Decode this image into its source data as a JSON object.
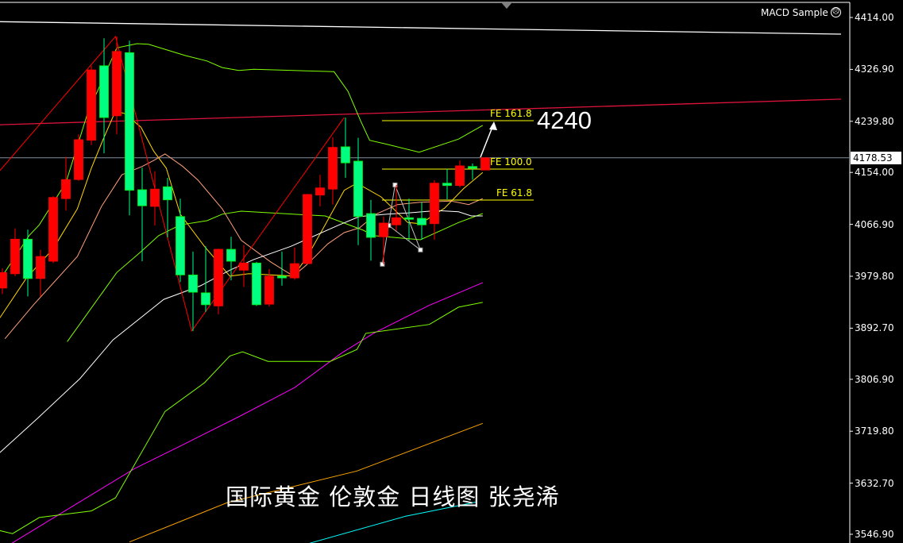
{
  "indicator_label": "MACD Sample",
  "indicator_icon": "sad-face-icon",
  "caption": "国际黄金 伦敦金 日线图 张尧浠",
  "target_annotation": "4240",
  "current_price": "4178.53",
  "colors": {
    "background": "#000000",
    "bull": "#ff0000",
    "bear": "#00ff80",
    "fibo": "#ffff00",
    "grid_price_line": "#7f8fa0"
  },
  "chart_data": {
    "type": "candlestick",
    "title": "",
    "xlabel": "",
    "ylabel": "",
    "ylim": [
      3546.9,
      4414.0
    ],
    "grid": false,
    "price_ticks": [
      "4414.00",
      "4326.90",
      "4239.80",
      "4154.00",
      "4066.90",
      "3979.80",
      "3892.70",
      "3806.90",
      "3719.80",
      "3632.70",
      "3546.90"
    ],
    "candles": [
      [
        3960,
        3993,
        3950,
        3986
      ],
      [
        3984,
        4060,
        3980,
        4042
      ],
      [
        4042,
        4058,
        3946,
        3976
      ],
      [
        3976,
        4024,
        3946,
        4013
      ],
      [
        4005,
        4114,
        4002,
        4112
      ],
      [
        4110,
        4180,
        4090,
        4142
      ],
      [
        4142,
        4218,
        4140,
        4209
      ],
      [
        4208,
        4333,
        4200,
        4326
      ],
      [
        4333,
        4379,
        4186,
        4246
      ],
      [
        4249,
        4382,
        4218,
        4357
      ],
      [
        4355,
        4375,
        4082,
        4124
      ],
      [
        4125,
        4162,
        4005,
        4098
      ],
      [
        4097,
        4156,
        4065,
        4126
      ],
      [
        4130,
        4145,
        4045,
        4108
      ],
      [
        4080,
        4110,
        3970,
        3982
      ],
      [
        3982,
        4021,
        3888,
        3953
      ],
      [
        3952,
        4030,
        3920,
        3932
      ],
      [
        3930,
        4026,
        3916,
        4025
      ],
      [
        4025,
        4046,
        3973,
        4005
      ],
      [
        3990,
        4032,
        3962,
        4002
      ],
      [
        4002,
        4004,
        3930,
        3932
      ],
      [
        3933,
        3992,
        3929,
        3980
      ],
      [
        3980,
        4021,
        3964,
        3977
      ],
      [
        3977,
        4028,
        3974,
        4001
      ],
      [
        4001,
        4118,
        4000,
        4117
      ],
      [
        4116,
        4150,
        4097,
        4128
      ],
      [
        4126,
        4213,
        4100,
        4196
      ],
      [
        4197,
        4246,
        4145,
        4170
      ],
      [
        4173,
        4212,
        4032,
        4080
      ],
      [
        4085,
        4108,
        4006,
        4045
      ],
      [
        4046,
        4080,
        4000,
        4069
      ],
      [
        4066,
        4133,
        4056,
        4078
      ],
      [
        4078,
        4110,
        4040,
        4077
      ],
      [
        4077,
        4104,
        4041,
        4066
      ],
      [
        4068,
        4141,
        4041,
        4136
      ],
      [
        4136,
        4160,
        4109,
        4132
      ],
      [
        4132,
        4174,
        4129,
        4165
      ],
      [
        4164,
        4169,
        4142,
        4161
      ],
      [
        4158,
        4179,
        4158,
        4178.53
      ]
    ],
    "candle_fields": [
      "open",
      "high",
      "low",
      "close"
    ],
    "indicators": [
      {
        "color": "#ff00ff",
        "points": [
          [
            0.75,
            3532
          ],
          [
            7.3,
            3617
          ],
          [
            10.4,
            3657
          ],
          [
            14.2,
            3697
          ],
          [
            18.6,
            3744
          ],
          [
            23,
            3793
          ],
          [
            26.7,
            3851
          ],
          [
            29.2,
            3884
          ],
          [
            33.6,
            3931
          ],
          [
            37.8,
            3969
          ]
        ]
      },
      {
        "color": "#ffa500",
        "points": [
          [
            10,
            3534
          ],
          [
            17.7,
            3600
          ],
          [
            27.9,
            3653
          ],
          [
            37.8,
            3733
          ]
        ]
      },
      {
        "color": "#00ffff",
        "points": [
          [
            24.2,
            3532
          ],
          [
            31.7,
            3577
          ],
          [
            37.3,
            3601
          ]
        ]
      },
      {
        "color": "#7fff00",
        "points": [
          [
            -0.2,
            3553
          ],
          [
            0.8,
            3548
          ],
          [
            2.9,
            3575
          ],
          [
            7,
            3586
          ],
          [
            8.9,
            3608
          ],
          [
            12.8,
            3753
          ],
          [
            15.9,
            3801
          ],
          [
            17.9,
            3846
          ],
          [
            18.9,
            3853
          ],
          [
            20.9,
            3837
          ],
          [
            25.8,
            3837
          ],
          [
            27.9,
            3857
          ],
          [
            28.6,
            3884
          ],
          [
            33.6,
            3899
          ],
          [
            35.9,
            3928
          ],
          [
            37.8,
            3936
          ]
        ]
      },
      {
        "color": "#7fff00",
        "points": [
          [
            5.1,
            3870
          ],
          [
            9,
            3986
          ],
          [
            10.9,
            4021
          ],
          [
            12.3,
            4048
          ],
          [
            14,
            4066
          ],
          [
            16.1,
            4073
          ],
          [
            17.3,
            4084
          ],
          [
            18.8,
            4089
          ],
          [
            25.4,
            4081
          ],
          [
            25.9,
            4077
          ],
          [
            28.4,
            4057
          ],
          [
            29.2,
            4048
          ],
          [
            32.9,
            4041
          ],
          [
            35.9,
            4070
          ],
          [
            37.8,
            4085
          ]
        ]
      },
      {
        "color": "#7fff00",
        "points": [
          [
            -0.2,
            3974
          ],
          [
            2.1,
            4048
          ],
          [
            2.9,
            4066
          ],
          [
            5,
            4137
          ],
          [
            6.7,
            4253
          ],
          [
            9,
            4363
          ],
          [
            10.6,
            4370
          ],
          [
            11.5,
            4369
          ],
          [
            14.4,
            4350
          ],
          [
            16.1,
            4341
          ],
          [
            17.3,
            4330
          ],
          [
            18.6,
            4325
          ],
          [
            19.8,
            4327
          ],
          [
            26.1,
            4323
          ],
          [
            27.2,
            4290
          ],
          [
            28.2,
            4240
          ],
          [
            28.9,
            4208
          ],
          [
            30.3,
            4201
          ],
          [
            32.8,
            4188
          ],
          [
            35.9,
            4210
          ],
          [
            37.8,
            4233
          ]
        ]
      },
      {
        "color": "#ffd700",
        "points": [
          [
            -0.2,
            3910
          ],
          [
            1.9,
            3977
          ],
          [
            4,
            4026
          ],
          [
            5.9,
            4093
          ],
          [
            7,
            4161
          ],
          [
            7.9,
            4208
          ],
          [
            8.9,
            4257
          ],
          [
            9.6,
            4253
          ],
          [
            10.9,
            4230
          ],
          [
            11.9,
            4190
          ],
          [
            12.9,
            4161
          ],
          [
            14,
            4084
          ],
          [
            15.9,
            4030
          ],
          [
            17.9,
            3980
          ],
          [
            19.4,
            3984
          ],
          [
            22.9,
            3980
          ],
          [
            24,
            4013
          ],
          [
            25.4,
            4066
          ],
          [
            26.9,
            4124
          ],
          [
            27.9,
            4136
          ],
          [
            29.8,
            4113
          ],
          [
            31.9,
            4070
          ],
          [
            32.9,
            4068
          ],
          [
            34.8,
            4094
          ],
          [
            36.3,
            4127
          ],
          [
            37.8,
            4154
          ]
        ]
      },
      {
        "color": "#ffa07a",
        "points": [
          [
            0.2,
            3875
          ],
          [
            2.5,
            3933
          ],
          [
            5.9,
            4013
          ],
          [
            7.8,
            4097
          ],
          [
            9.4,
            4150
          ],
          [
            11,
            4164
          ],
          [
            11.9,
            4174
          ],
          [
            12.8,
            4185
          ],
          [
            14.2,
            4164
          ],
          [
            15.4,
            4141
          ],
          [
            17.3,
            4093
          ],
          [
            18.8,
            4040
          ],
          [
            21.1,
            4004
          ],
          [
            22.9,
            3980
          ],
          [
            24,
            4000
          ],
          [
            25.6,
            4034
          ],
          [
            26.9,
            4053
          ],
          [
            28.1,
            4061
          ],
          [
            29.4,
            4084
          ],
          [
            31.1,
            4100
          ],
          [
            32.9,
            4104
          ],
          [
            35.3,
            4106
          ],
          [
            36.7,
            4100
          ],
          [
            37.8,
            4110
          ]
        ]
      },
      {
        "color": "#ffffff",
        "points": [
          [
            -0.2,
            3684
          ],
          [
            2.75,
            3741
          ],
          [
            6.1,
            3808
          ],
          [
            8.7,
            3873
          ],
          [
            12.7,
            3941
          ],
          [
            15.6,
            3964
          ],
          [
            17.9,
            3990
          ],
          [
            19.8,
            4008
          ],
          [
            22.7,
            4030
          ],
          [
            26.5,
            4066
          ],
          [
            28.1,
            4080
          ],
          [
            30.3,
            4084
          ],
          [
            31.9,
            4086
          ],
          [
            34.2,
            4090
          ],
          [
            35.9,
            4088
          ],
          [
            36.9,
            4081
          ],
          [
            37.8,
            4081
          ]
        ]
      }
    ],
    "trendlines": [
      {
        "color": "#ffffff",
        "points": [
          [
            -0.2,
            4407
          ],
          [
            66,
            4386
          ]
        ]
      },
      {
        "color": "#dc143c",
        "points": [
          [
            -0.2,
            4234
          ],
          [
            66,
            4277
          ]
        ]
      }
    ],
    "zigzag": {
      "color": "#ff0000",
      "points": [
        [
          -0.2,
          4157
        ],
        [
          8.9,
          4382
        ],
        [
          14.9,
          3888
        ],
        [
          26.9,
          4246
        ]
      ]
    },
    "fibo_expansion": {
      "color": "#c0c0c0",
      "points": [
        [
          29.9,
          4000
        ],
        [
          30.4,
          4065
        ],
        [
          30.9,
          4133
        ],
        [
          32.9,
          4024
        ]
      ],
      "levels": [
        {
          "label": "FE 161.8",
          "price": 4240.8
        },
        {
          "label": "FE 100.0",
          "price": 4159.6
        },
        {
          "label": "FE 61.8",
          "price": 4107.6
        }
      ]
    }
  }
}
